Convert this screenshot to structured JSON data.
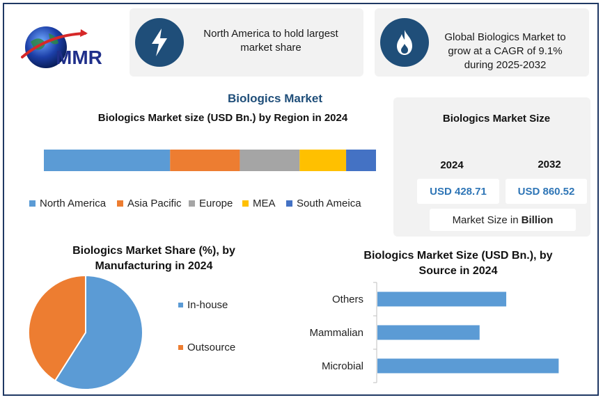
{
  "logo": {
    "text": "MMR"
  },
  "cards": [
    {
      "icon": "lightning-icon",
      "text": "North America to hold largest market share"
    },
    {
      "icon": "flame-icon",
      "text": "Global Biologics Market to grow at a CAGR of 9.1% during 2025-2032"
    }
  ],
  "main_title": "Biologics Market",
  "market_size": {
    "title": "Biologics Market Size",
    "years": [
      "2024",
      "2032"
    ],
    "values": [
      "USD 428.71",
      "USD 860.52"
    ],
    "note_prefix": "Market Size in",
    "note_unit": "Billion"
  },
  "colors": {
    "dark_blue": "#1f4e79",
    "accent_blue": "#2e75b6"
  },
  "chart_data": [
    {
      "type": "bar",
      "orientation": "horizontal-stacked",
      "title": "Biologics Market size (USD Bn.) by Region in 2024",
      "categories": [
        "North America",
        "Asia Pacific",
        "Europe",
        "MEA",
        "South Ameica"
      ],
      "values": [
        38,
        21,
        18,
        14,
        9
      ],
      "colors": [
        "#5b9bd5",
        "#ed7d31",
        "#a5a5a5",
        "#ffc000",
        "#4472c4"
      ],
      "legend": "bottom"
    },
    {
      "type": "pie",
      "title": "Biologics Market Share (%), by Manufacturing in 2024",
      "categories": [
        "In-house",
        "Outsource"
      ],
      "values": [
        59,
        41
      ],
      "colors": [
        "#5b9bd5",
        "#ed7d31"
      ],
      "legend": "right"
    },
    {
      "type": "bar",
      "orientation": "horizontal",
      "title": "Biologics Market Size (USD Bn.), by Source in 2024",
      "categories": [
        "Others",
        "Mammalian",
        "Microbial"
      ],
      "values": [
        145,
        115,
        204
      ],
      "colors": [
        "#5b9bd5"
      ],
      "xlim": [
        0,
        210
      ],
      "legend": "none"
    }
  ]
}
